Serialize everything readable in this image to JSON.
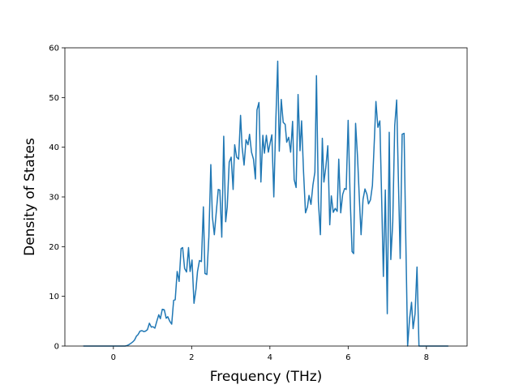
{
  "chart_data": {
    "type": "line",
    "xlabel": "Frequency (THz)",
    "ylabel": "Density of States",
    "xlim": [
      -1.24,
      9.04
    ],
    "ylim": [
      0,
      60
    ],
    "xticks": [
      0,
      2,
      4,
      6,
      8
    ],
    "yticks": [
      0,
      10,
      20,
      30,
      40,
      50,
      60
    ],
    "x": [
      -0.77,
      0.3,
      0.35,
      0.4,
      0.44,
      0.49,
      0.54,
      0.59,
      0.63,
      0.68,
      0.73,
      0.78,
      0.82,
      0.87,
      0.92,
      0.97,
      1.01,
      1.06,
      1.11,
      1.16,
      1.2,
      1.25,
      1.3,
      1.35,
      1.39,
      1.44,
      1.49,
      1.54,
      1.58,
      1.63,
      1.68,
      1.73,
      1.77,
      1.82,
      1.87,
      1.92,
      1.96,
      2.01,
      2.06,
      2.11,
      2.15,
      2.2,
      2.25,
      2.3,
      2.34,
      2.39,
      2.44,
      2.49,
      2.53,
      2.58,
      2.63,
      2.68,
      2.72,
      2.77,
      2.82,
      2.87,
      2.91,
      2.96,
      3.01,
      3.06,
      3.1,
      3.15,
      3.2,
      3.25,
      3.29,
      3.34,
      3.39,
      3.44,
      3.48,
      3.53,
      3.58,
      3.63,
      3.67,
      3.72,
      3.77,
      3.82,
      3.86,
      3.91,
      3.96,
      4.01,
      4.05,
      4.1,
      4.15,
      4.2,
      4.24,
      4.29,
      4.34,
      4.39,
      4.43,
      4.48,
      4.53,
      4.58,
      4.62,
      4.67,
      4.72,
      4.77,
      4.81,
      4.86,
      4.91,
      4.96,
      5.0,
      5.05,
      5.1,
      5.15,
      5.19,
      5.24,
      5.29,
      5.34,
      5.38,
      5.43,
      5.48,
      5.53,
      5.57,
      5.62,
      5.67,
      5.72,
      5.76,
      5.81,
      5.86,
      5.91,
      5.95,
      6.0,
      6.05,
      6.1,
      6.14,
      6.19,
      6.24,
      6.29,
      6.33,
      6.38,
      6.43,
      6.48,
      6.52,
      6.57,
      6.62,
      6.67,
      6.71,
      6.76,
      6.81,
      6.86,
      6.9,
      6.95,
      7.0,
      7.05,
      7.09,
      7.14,
      7.19,
      7.24,
      7.28,
      7.33,
      7.38,
      7.43,
      7.47,
      7.52,
      7.57,
      7.62,
      7.66,
      7.71,
      7.76,
      7.81,
      8.56
    ],
    "series": [
      {
        "color": "#1f77b4",
        "values": [
          0,
          0,
          0.1,
          0.3,
          0.5,
          0.8,
          1.2,
          2,
          2.3,
          3,
          3.1,
          2.9,
          3,
          3.3,
          4.6,
          3.8,
          3.9,
          3.6,
          5,
          6.3,
          5.5,
          7.4,
          7.3,
          5.6,
          5.9,
          5,
          4.4,
          9.2,
          9.3,
          15,
          13,
          19.6,
          19.8,
          15.6,
          14.9,
          19.8,
          15,
          17.3,
          8.6,
          11.4,
          15,
          17.2,
          17,
          28,
          14.6,
          14.4,
          22,
          36.5,
          26,
          22.4,
          27,
          31.5,
          31.4,
          21.9,
          42.2,
          25,
          28,
          37,
          38,
          31.5,
          40.5,
          38,
          37.6,
          46.4,
          40,
          36.4,
          41.5,
          40.5,
          42.6,
          39,
          37.6,
          33.6,
          47.5,
          49,
          33,
          42.4,
          38.8,
          42.4,
          39,
          41,
          42.5,
          30,
          45,
          57.3,
          39.2,
          49.6,
          45,
          44.6,
          41,
          42,
          39,
          45.2,
          33.5,
          31.9,
          50.6,
          39.3,
          45.3,
          35,
          26.8,
          28,
          30.3,
          28.5,
          32.4,
          35,
          54.4,
          29,
          22.4,
          41.8,
          33,
          36,
          40.3,
          24.4,
          30.2,
          26.9,
          27.7,
          27.1,
          37.6,
          26.8,
          30.5,
          31.7,
          31.5,
          45.4,
          30,
          19,
          18.6,
          44.8,
          38,
          29,
          22.4,
          29.5,
          31.6,
          30.5,
          28.6,
          29.4,
          32.3,
          41.5,
          49.2,
          44,
          45.3,
          28.4,
          14,
          31.4,
          6.5,
          43,
          17.4,
          25,
          44.3,
          49.5,
          34.8,
          17.6,
          42.6,
          42.8,
          23,
          0,
          5.5,
          8.8,
          3.5,
          6.5,
          15.9,
          0,
          0
        ]
      }
    ]
  }
}
